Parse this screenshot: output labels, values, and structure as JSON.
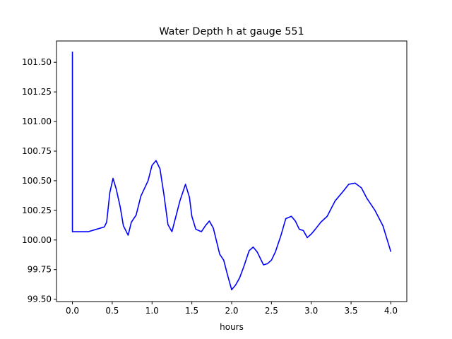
{
  "chart_data": {
    "type": "line",
    "title": "Water Depth h at gauge 551",
    "xlabel": "hours",
    "ylabel": "",
    "xlim": [
      -0.2,
      4.2
    ],
    "ylim": [
      99.48,
      101.68
    ],
    "xticks": [
      0.0,
      0.5,
      1.0,
      1.5,
      2.0,
      2.5,
      3.0,
      3.5,
      4.0
    ],
    "xtick_labels": [
      "0.0",
      "0.5",
      "1.0",
      "1.5",
      "2.0",
      "2.5",
      "3.0",
      "3.5",
      "4.0"
    ],
    "yticks": [
      99.5,
      99.75,
      100.0,
      100.25,
      100.5,
      100.75,
      101.0,
      101.25,
      101.5
    ],
    "ytick_labels": [
      "99.50",
      "99.75",
      "100.00",
      "100.25",
      "100.50",
      "100.75",
      "101.00",
      "101.25",
      "101.50"
    ],
    "grid": false,
    "legend": "none",
    "series": [
      {
        "color": "#0000ff",
        "points": [
          [
            0.0,
            101.59
          ],
          [
            0.0,
            100.07
          ],
          [
            0.1,
            100.07
          ],
          [
            0.2,
            100.07
          ],
          [
            0.3,
            100.09
          ],
          [
            0.4,
            100.11
          ],
          [
            0.43,
            100.15
          ],
          [
            0.47,
            100.4
          ],
          [
            0.51,
            100.52
          ],
          [
            0.55,
            100.43
          ],
          [
            0.6,
            100.28
          ],
          [
            0.64,
            100.12
          ],
          [
            0.7,
            100.04
          ],
          [
            0.74,
            100.15
          ],
          [
            0.8,
            100.21
          ],
          [
            0.86,
            100.37
          ],
          [
            0.95,
            100.5
          ],
          [
            1.0,
            100.63
          ],
          [
            1.05,
            100.67
          ],
          [
            1.1,
            100.6
          ],
          [
            1.15,
            100.38
          ],
          [
            1.2,
            100.13
          ],
          [
            1.25,
            100.07
          ],
          [
            1.3,
            100.2
          ],
          [
            1.35,
            100.33
          ],
          [
            1.42,
            100.47
          ],
          [
            1.47,
            100.36
          ],
          [
            1.5,
            100.2
          ],
          [
            1.55,
            100.09
          ],
          [
            1.62,
            100.07
          ],
          [
            1.67,
            100.12
          ],
          [
            1.72,
            100.16
          ],
          [
            1.77,
            100.1
          ],
          [
            1.85,
            99.88
          ],
          [
            1.9,
            99.83
          ],
          [
            1.95,
            99.7
          ],
          [
            2.0,
            99.58
          ],
          [
            2.05,
            99.62
          ],
          [
            2.1,
            99.68
          ],
          [
            2.15,
            99.77
          ],
          [
            2.22,
            99.91
          ],
          [
            2.27,
            99.94
          ],
          [
            2.32,
            99.9
          ],
          [
            2.4,
            99.79
          ],
          [
            2.45,
            99.8
          ],
          [
            2.5,
            99.83
          ],
          [
            2.55,
            99.9
          ],
          [
            2.62,
            100.04
          ],
          [
            2.68,
            100.18
          ],
          [
            2.75,
            100.2
          ],
          [
            2.8,
            100.16
          ],
          [
            2.85,
            100.09
          ],
          [
            2.9,
            100.08
          ],
          [
            2.95,
            100.02
          ],
          [
            3.0,
            100.05
          ],
          [
            3.05,
            100.09
          ],
          [
            3.12,
            100.15
          ],
          [
            3.2,
            100.2
          ],
          [
            3.3,
            100.33
          ],
          [
            3.4,
            100.41
          ],
          [
            3.47,
            100.47
          ],
          [
            3.55,
            100.48
          ],
          [
            3.63,
            100.44
          ],
          [
            3.7,
            100.35
          ],
          [
            3.8,
            100.25
          ],
          [
            3.9,
            100.12
          ],
          [
            4.0,
            99.9
          ]
        ]
      }
    ]
  }
}
